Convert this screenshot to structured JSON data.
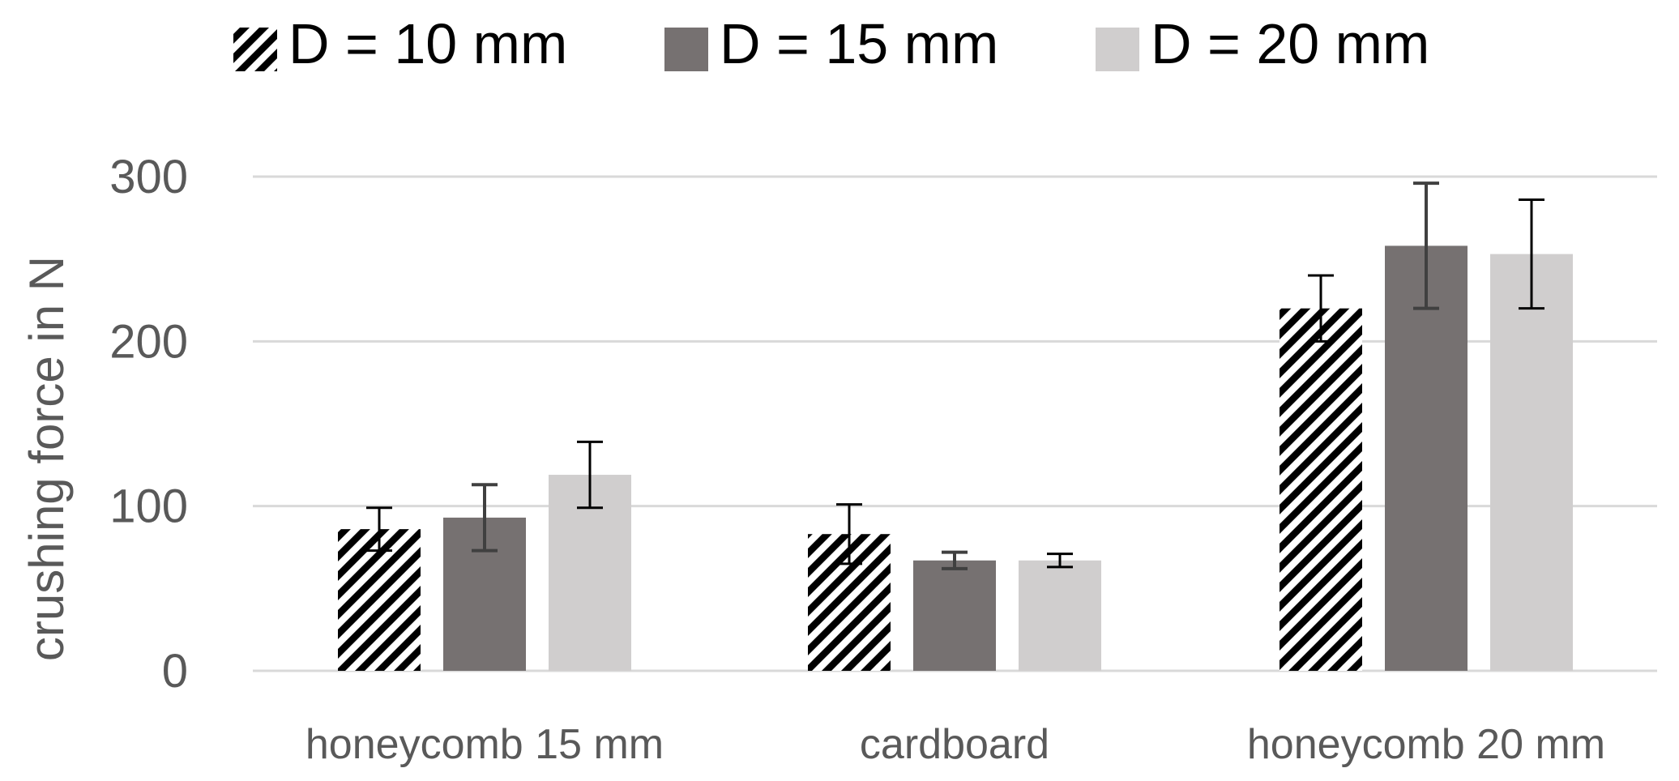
{
  "chart_data": {
    "type": "bar",
    "title": "",
    "xlabel": "",
    "ylabel": "crushing force in N",
    "ylim": [
      0,
      300
    ],
    "yticks": [
      "0",
      "100",
      "200",
      "300"
    ],
    "grid": true,
    "legend_position": "top",
    "categories": [
      "honeycomb 15 mm",
      "cardboard",
      "honeycomb 20 mm"
    ],
    "series": [
      {
        "name": "D = 10 mm",
        "fill": "hatched",
        "color": "#000000",
        "values": [
          86,
          83,
          220
        ],
        "errors": [
          13,
          18,
          20
        ]
      },
      {
        "name": "D = 15 mm",
        "fill": "solid",
        "color": "#767171",
        "values": [
          93,
          67,
          258
        ],
        "errors": [
          20,
          5,
          38
        ]
      },
      {
        "name": "D = 20 mm",
        "fill": "solid",
        "color": "#d0cece",
        "values": [
          119,
          67,
          253
        ],
        "errors": [
          20,
          4,
          33
        ]
      }
    ]
  }
}
